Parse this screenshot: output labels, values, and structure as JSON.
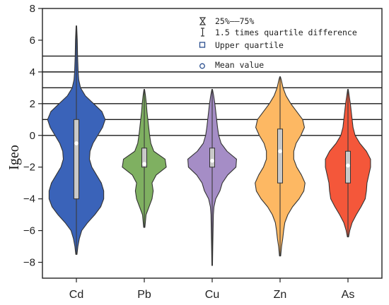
{
  "chart_data": {
    "type": "violin",
    "ylabel": "Igeo",
    "xlabel": "",
    "ylim": [
      -9,
      8
    ],
    "yticks": [
      -8,
      -6,
      -4,
      -2,
      0,
      2,
      4,
      6,
      8
    ],
    "grid": "horizontal reference lines at Igeo = 0, 1, 2, 3, 4, 5",
    "reference_lines": [
      0,
      1,
      2,
      3,
      4,
      5
    ],
    "legend": {
      "placement": "top-right",
      "items": [
        {
          "symbol": "hourglass-icon",
          "label": "25%——75%"
        },
        {
          "symbol": "whisker-icon",
          "label": "1.5 times quartile difference"
        },
        {
          "symbol": "square-icon",
          "label": "Upper quartile"
        },
        {
          "symbol": "circle-icon",
          "label": "Mean value"
        }
      ]
    },
    "series": [
      {
        "category": "Cd",
        "color": "#3a63b9",
        "min": -7.5,
        "max": 6.9,
        "whisker": [
          -6.0,
          6.0
        ],
        "q1": -4.0,
        "q3": 1.0,
        "median": -0.5,
        "mean": -0.5,
        "density": [
          [
            -7.5,
            0.02
          ],
          [
            -7.0,
            0.05
          ],
          [
            -6.5,
            0.1
          ],
          [
            -6.0,
            0.18
          ],
          [
            -5.5,
            0.38
          ],
          [
            -5.0,
            0.62
          ],
          [
            -4.5,
            0.82
          ],
          [
            -4.0,
            0.92
          ],
          [
            -3.5,
            0.92
          ],
          [
            -3.0,
            0.84
          ],
          [
            -2.5,
            0.68
          ],
          [
            -2.0,
            0.52
          ],
          [
            -1.5,
            0.44
          ],
          [
            -1.0,
            0.46
          ],
          [
            -0.5,
            0.56
          ],
          [
            0.0,
            0.72
          ],
          [
            0.5,
            0.88
          ],
          [
            1.0,
            0.97
          ],
          [
            1.5,
            0.86
          ],
          [
            2.0,
            0.58
          ],
          [
            2.5,
            0.3
          ],
          [
            3.0,
            0.14
          ],
          [
            3.5,
            0.08
          ],
          [
            4.0,
            0.06
          ],
          [
            5.0,
            0.04
          ],
          [
            6.0,
            0.03
          ],
          [
            6.9,
            0.01
          ]
        ]
      },
      {
        "category": "Pb",
        "color": "#7fb061",
        "min": -5.8,
        "max": 2.9,
        "whisker": [
          -4.0,
          2.0
        ],
        "q1": -2.0,
        "q3": -0.8,
        "median": -1.4,
        "mean": -1.8,
        "density": [
          [
            -5.8,
            0.02
          ],
          [
            -5.0,
            0.06
          ],
          [
            -4.5,
            0.16
          ],
          [
            -4.0,
            0.26
          ],
          [
            -3.5,
            0.3
          ],
          [
            -3.0,
            0.26
          ],
          [
            -2.5,
            0.4
          ],
          [
            -2.0,
            0.74
          ],
          [
            -1.5,
            0.7
          ],
          [
            -1.0,
            0.32
          ],
          [
            -0.5,
            0.22
          ],
          [
            0.0,
            0.18
          ],
          [
            0.5,
            0.15
          ],
          [
            1.0,
            0.12
          ],
          [
            1.5,
            0.09
          ],
          [
            2.0,
            0.07
          ],
          [
            2.5,
            0.04
          ],
          [
            2.9,
            0.01
          ]
        ]
      },
      {
        "category": "Cu",
        "color": "#a58dc6",
        "min": -8.2,
        "max": 2.9,
        "whisker": [
          -4.0,
          2.0
        ],
        "q1": -2.0,
        "q3": -0.8,
        "median": -1.6,
        "mean": -1.6,
        "density": [
          [
            -8.2,
            0.01
          ],
          [
            -7.0,
            0.02
          ],
          [
            -6.0,
            0.03
          ],
          [
            -5.0,
            0.04
          ],
          [
            -4.5,
            0.06
          ],
          [
            -4.0,
            0.12
          ],
          [
            -3.5,
            0.26
          ],
          [
            -3.0,
            0.34
          ],
          [
            -2.5,
            0.52
          ],
          [
            -2.0,
            0.8
          ],
          [
            -1.5,
            0.82
          ],
          [
            -1.0,
            0.5
          ],
          [
            -0.5,
            0.3
          ],
          [
            0.0,
            0.22
          ],
          [
            0.5,
            0.18
          ],
          [
            1.0,
            0.15
          ],
          [
            1.5,
            0.12
          ],
          [
            2.0,
            0.09
          ],
          [
            2.5,
            0.05
          ],
          [
            2.9,
            0.01
          ]
        ]
      },
      {
        "category": "Zn",
        "color": "#fdb863",
        "min": -7.6,
        "max": 3.7,
        "whisker": [
          -6.0,
          2.0
        ],
        "q1": -3.0,
        "q3": 0.4,
        "median": -1.0,
        "mean": -1.0,
        "density": [
          [
            -7.6,
            0.02
          ],
          [
            -7.0,
            0.05
          ],
          [
            -6.5,
            0.09
          ],
          [
            -6.0,
            0.12
          ],
          [
            -5.5,
            0.16
          ],
          [
            -5.0,
            0.26
          ],
          [
            -4.5,
            0.42
          ],
          [
            -4.0,
            0.64
          ],
          [
            -3.5,
            0.8
          ],
          [
            -3.0,
            0.84
          ],
          [
            -2.5,
            0.72
          ],
          [
            -2.0,
            0.56
          ],
          [
            -1.5,
            0.46
          ],
          [
            -1.0,
            0.46
          ],
          [
            -0.5,
            0.54
          ],
          [
            0.0,
            0.7
          ],
          [
            0.5,
            0.82
          ],
          [
            1.0,
            0.76
          ],
          [
            1.5,
            0.56
          ],
          [
            2.0,
            0.36
          ],
          [
            2.5,
            0.2
          ],
          [
            3.0,
            0.1
          ],
          [
            3.5,
            0.04
          ],
          [
            3.7,
            0.01
          ]
        ]
      },
      {
        "category": "As",
        "color": "#f4573a",
        "min": -6.4,
        "max": 2.9,
        "whisker": [
          -5.0,
          2.0
        ],
        "q1": -3.0,
        "q3": -1.0,
        "median": -1.9,
        "mean": -1.9,
        "density": [
          [
            -6.4,
            0.02
          ],
          [
            -6.0,
            0.06
          ],
          [
            -5.5,
            0.14
          ],
          [
            -5.0,
            0.28
          ],
          [
            -4.5,
            0.44
          ],
          [
            -4.0,
            0.58
          ],
          [
            -3.5,
            0.62
          ],
          [
            -3.0,
            0.64
          ],
          [
            -2.5,
            0.7
          ],
          [
            -2.0,
            0.76
          ],
          [
            -1.5,
            0.76
          ],
          [
            -1.0,
            0.62
          ],
          [
            -0.5,
            0.4
          ],
          [
            0.0,
            0.24
          ],
          [
            0.5,
            0.17
          ],
          [
            1.0,
            0.14
          ],
          [
            1.5,
            0.11
          ],
          [
            2.0,
            0.08
          ],
          [
            2.5,
            0.04
          ],
          [
            2.9,
            0.01
          ]
        ]
      }
    ]
  }
}
